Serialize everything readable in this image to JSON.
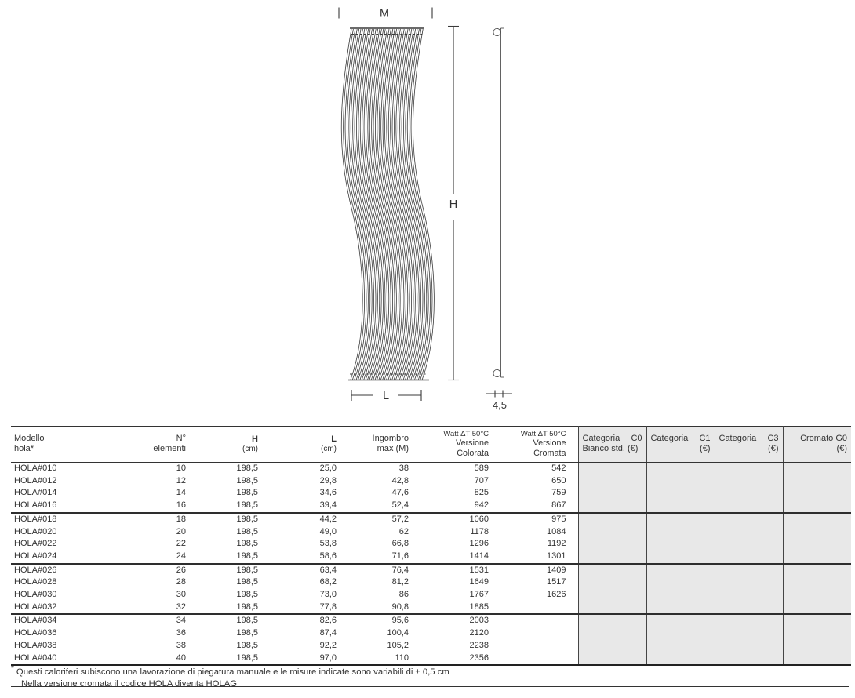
{
  "drawing": {
    "dim_width_label": "M",
    "dim_height_label": "H",
    "dim_length_label": "L",
    "dim_depth_value": "4,5"
  },
  "table": {
    "headers": {
      "modello": [
        "Modello",
        "hola*"
      ],
      "elementi": [
        "N°",
        "elementi"
      ],
      "h": [
        "H",
        "(cm)"
      ],
      "l": [
        "L",
        "(cm)"
      ],
      "ingombro": [
        "Ingombro",
        "max (M)"
      ],
      "watt_colorata": [
        "Watt ΔT 50°C",
        "Versione",
        "Colorata"
      ],
      "watt_cromata": [
        "Watt ΔT 50°C",
        "Versione",
        "Cromata"
      ],
      "cat_c0": {
        "w1": "Categoria",
        "w2": "C0",
        "line2": "Bianco std. (€)"
      },
      "cat_c1": {
        "w1": "Categoria",
        "w2": "C1",
        "line2": "(€)"
      },
      "cat_c3": {
        "w1": "Categoria",
        "w2": "C3",
        "line2": "(€)"
      },
      "cromato_g0": {
        "line1": "Cromato G0",
        "line2": "(€)"
      }
    },
    "group_size": 4,
    "rows": [
      {
        "modello": "HOLA#010",
        "elementi": "10",
        "h": "198,5",
        "l": "25,0",
        "ingombro": "38",
        "watt_colorata": "589",
        "watt_cromata": "542",
        "c0": "",
        "c1": "",
        "c3": "",
        "g0": ""
      },
      {
        "modello": "HOLA#012",
        "elementi": "12",
        "h": "198,5",
        "l": "29,8",
        "ingombro": "42,8",
        "watt_colorata": "707",
        "watt_cromata": "650",
        "c0": "",
        "c1": "",
        "c3": "",
        "g0": ""
      },
      {
        "modello": "HOLA#014",
        "elementi": "14",
        "h": "198,5",
        "l": "34,6",
        "ingombro": "47,6",
        "watt_colorata": "825",
        "watt_cromata": "759",
        "c0": "",
        "c1": "",
        "c3": "",
        "g0": ""
      },
      {
        "modello": "HOLA#016",
        "elementi": "16",
        "h": "198,5",
        "l": "39,4",
        "ingombro": "52,4",
        "watt_colorata": "942",
        "watt_cromata": "867",
        "c0": "",
        "c1": "",
        "c3": "",
        "g0": ""
      },
      {
        "modello": "HOLA#018",
        "elementi": "18",
        "h": "198,5",
        "l": "44,2",
        "ingombro": "57,2",
        "watt_colorata": "1060",
        "watt_cromata": "975",
        "c0": "",
        "c1": "",
        "c3": "",
        "g0": ""
      },
      {
        "modello": "HOLA#020",
        "elementi": "20",
        "h": "198,5",
        "l": "49,0",
        "ingombro": "62",
        "watt_colorata": "1178",
        "watt_cromata": "1084",
        "c0": "",
        "c1": "",
        "c3": "",
        "g0": ""
      },
      {
        "modello": "HOLA#022",
        "elementi": "22",
        "h": "198,5",
        "l": "53,8",
        "ingombro": "66,8",
        "watt_colorata": "1296",
        "watt_cromata": "1192",
        "c0": "",
        "c1": "",
        "c3": "",
        "g0": ""
      },
      {
        "modello": "HOLA#024",
        "elementi": "24",
        "h": "198,5",
        "l": "58,6",
        "ingombro": "71,6",
        "watt_colorata": "1414",
        "watt_cromata": "1301",
        "c0": "",
        "c1": "",
        "c3": "",
        "g0": ""
      },
      {
        "modello": "HOLA#026",
        "elementi": "26",
        "h": "198,5",
        "l": "63,4",
        "ingombro": "76,4",
        "watt_colorata": "1531",
        "watt_cromata": "1409",
        "c0": "",
        "c1": "",
        "c3": "",
        "g0": ""
      },
      {
        "modello": "HOLA#028",
        "elementi": "28",
        "h": "198,5",
        "l": "68,2",
        "ingombro": "81,2",
        "watt_colorata": "1649",
        "watt_cromata": "1517",
        "c0": "",
        "c1": "",
        "c3": "",
        "g0": ""
      },
      {
        "modello": "HOLA#030",
        "elementi": "30",
        "h": "198,5",
        "l": "73,0",
        "ingombro": "86",
        "watt_colorata": "1767",
        "watt_cromata": "1626",
        "c0": "",
        "c1": "",
        "c3": "",
        "g0": ""
      },
      {
        "modello": "HOLA#032",
        "elementi": "32",
        "h": "198,5",
        "l": "77,8",
        "ingombro": "90,8",
        "watt_colorata": "1885",
        "watt_cromata": "",
        "c0": "",
        "c1": "",
        "c3": "",
        "g0": ""
      },
      {
        "modello": "HOLA#034",
        "elementi": "34",
        "h": "198,5",
        "l": "82,6",
        "ingombro": "95,6",
        "watt_colorata": "2003",
        "watt_cromata": "",
        "c0": "",
        "c1": "",
        "c3": "",
        "g0": ""
      },
      {
        "modello": "HOLA#036",
        "elementi": "36",
        "h": "198,5",
        "l": "87,4",
        "ingombro": "100,4",
        "watt_colorata": "2120",
        "watt_cromata": "",
        "c0": "",
        "c1": "",
        "c3": "",
        "g0": ""
      },
      {
        "modello": "HOLA#038",
        "elementi": "38",
        "h": "198,5",
        "l": "92,2",
        "ingombro": "105,2",
        "watt_colorata": "2238",
        "watt_cromata": "",
        "c0": "",
        "c1": "",
        "c3": "",
        "g0": ""
      },
      {
        "modello": "HOLA#040",
        "elementi": "40",
        "h": "198,5",
        "l": "97,0",
        "ingombro": "110",
        "watt_colorata": "2356",
        "watt_cromata": "",
        "c0": "",
        "c1": "",
        "c3": "",
        "g0": ""
      }
    ]
  },
  "footnotes": {
    "marker": "*",
    "line1": "Questi caloriferi subiscono una lavorazione di piegatura manuale e le misure indicate sono variabili di ± 0,5 cm",
    "line2": "Nella versione cromata il codice HOLA diventa HOLAG"
  },
  "colors": {
    "text": "#333333",
    "grid_line": "#333333",
    "drawing_stroke": "#3a3a3a",
    "price_cell_bg": "#e8e8e8"
  }
}
